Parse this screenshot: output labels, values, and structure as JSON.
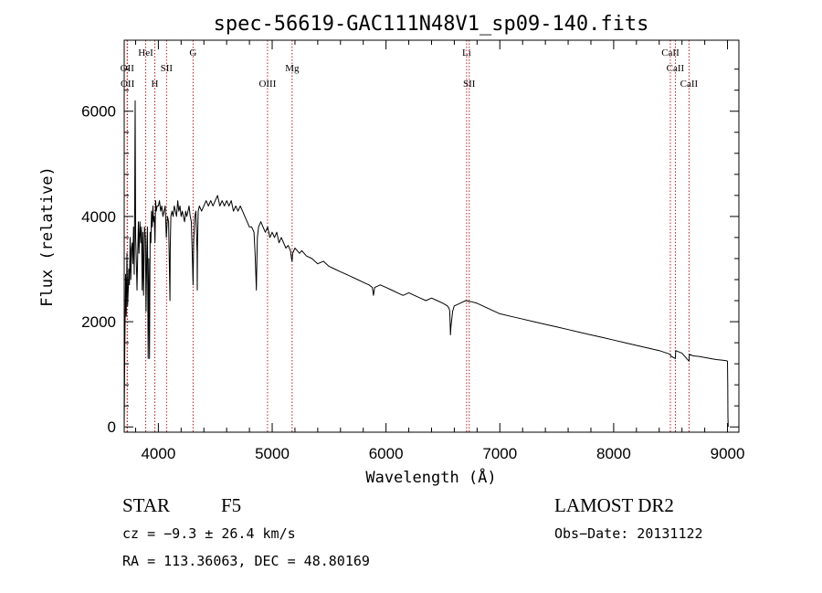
{
  "chart_data": {
    "type": "line",
    "title": "spec-56619-GAC111N48V1_sp09-140.fits",
    "xlabel": "Wavelength (Å)",
    "ylabel": "Flux (relative)",
    "xlim": [
      3700,
      9100
    ],
    "ylim": [
      -100,
      7350
    ],
    "x_ticks": [
      4000,
      5000,
      6000,
      7000,
      8000,
      9000
    ],
    "y_ticks": [
      0,
      2000,
      4000,
      6000
    ],
    "grid": false,
    "colors": {
      "spectrum": "#000000",
      "lines": "#b22222"
    },
    "series": [
      {
        "x": [
          3700,
          3705,
          3712,
          3718,
          3724,
          3730,
          3735,
          3740,
          3746,
          3752,
          3758,
          3764,
          3770,
          3776,
          3782,
          3788,
          3792,
          3796,
          3800,
          3806,
          3812,
          3818,
          3824,
          3830,
          3838,
          3846,
          3852,
          3858,
          3864,
          3870,
          3878,
          3886,
          3892,
          3898,
          3904,
          3910,
          3916,
          3922,
          3928,
          3934,
          3940,
          3946,
          3952,
          3958,
          3964,
          3970,
          3976,
          3982,
          3990,
          4000,
          4010,
          4020,
          4030,
          4040,
          4050,
          4060,
          4070,
          4080,
          4090,
          4100,
          4102,
          4104,
          4110,
          4120,
          4130,
          4140,
          4150,
          4160,
          4170,
          4180,
          4190,
          4200,
          4210,
          4220,
          4230,
          4240,
          4250,
          4260,
          4270,
          4280,
          4290,
          4300,
          4305,
          4310,
          4320,
          4330,
          4340,
          4342,
          4344,
          4350,
          4360,
          4380,
          4400,
          4420,
          4440,
          4460,
          4480,
          4500,
          4520,
          4540,
          4560,
          4580,
          4600,
          4620,
          4640,
          4660,
          4680,
          4700,
          4720,
          4740,
          4760,
          4780,
          4800,
          4820,
          4840,
          4850,
          4855,
          4861,
          4865,
          4870,
          4880,
          4900,
          4920,
          4940,
          4960,
          4980,
          5000,
          5020,
          5040,
          5060,
          5080,
          5100,
          5120,
          5140,
          5160,
          5170,
          5175,
          5180,
          5200,
          5220,
          5240,
          5260,
          5280,
          5300,
          5350,
          5400,
          5450,
          5500,
          5550,
          5600,
          5650,
          5700,
          5750,
          5800,
          5850,
          5880,
          5890,
          5900,
          5950,
          6000,
          6050,
          6100,
          6150,
          6200,
          6250,
          6300,
          6350,
          6400,
          6450,
          6500,
          6540,
          6555,
          6560,
          6563,
          6566,
          6570,
          6585,
          6600,
          6650,
          6700,
          6750,
          6800,
          6850,
          6900,
          6950,
          7000,
          7100,
          7200,
          7300,
          7400,
          7500,
          7600,
          7700,
          7800,
          7900,
          8000,
          8100,
          8200,
          8300,
          8400,
          8498,
          8500,
          8542,
          8545,
          8600,
          8662,
          8665,
          8700,
          8750,
          8800,
          8850,
          8900,
          8950,
          8990,
          9000,
          9002,
          9004,
          9006
        ],
        "y": [
          0,
          1400,
          2900,
          2100,
          3300,
          2300,
          2600,
          3000,
          2700,
          3600,
          2800,
          3400,
          3500,
          3100,
          3800,
          2900,
          4400,
          6200,
          3600,
          3200,
          2600,
          3200,
          3900,
          3300,
          3900,
          3500,
          3800,
          2600,
          3700,
          2500,
          3800,
          3600,
          2200,
          3300,
          3800,
          1300,
          3200,
          1300,
          3700,
          3500,
          4100,
          3800,
          4200,
          3900,
          4000,
          3500,
          4300,
          4100,
          4200,
          4200,
          4300,
          4100,
          4200,
          4000,
          4100,
          4200,
          3600,
          4000,
          3900,
          2600,
          2400,
          3400,
          4000,
          4100,
          4000,
          4200,
          4100,
          4000,
          4300,
          4100,
          4200,
          4000,
          4100,
          4000,
          3900,
          4100,
          4000,
          4100,
          4200,
          4000,
          3900,
          3100,
          2700,
          3500,
          4000,
          4100,
          3300,
          2600,
          3500,
          4100,
          4200,
          4100,
          4200,
          4300,
          4200,
          4300,
          4200,
          4300,
          4400,
          4200,
          4300,
          4200,
          4300,
          4200,
          4300,
          4100,
          4200,
          4100,
          4200,
          4100,
          4000,
          3900,
          3800,
          3800,
          3700,
          3300,
          3000,
          2600,
          3100,
          3600,
          3800,
          3900,
          3800,
          3700,
          3800,
          3600,
          3700,
          3600,
          3700,
          3500,
          3600,
          3500,
          3400,
          3450,
          3350,
          3200,
          3150,
          3300,
          3400,
          3350,
          3300,
          3350,
          3300,
          3250,
          3200,
          3100,
          3150,
          3050,
          3000,
          2950,
          2900,
          2850,
          2800,
          2750,
          2700,
          2650,
          2500,
          2650,
          2700,
          2650,
          2600,
          2550,
          2500,
          2550,
          2500,
          2450,
          2400,
          2450,
          2400,
          2350,
          2300,
          2250,
          2200,
          2000,
          1750,
          1900,
          2200,
          2300,
          2350,
          2400,
          2380,
          2350,
          2300,
          2250,
          2200,
          2150,
          2100,
          2050,
          2000,
          1950,
          1900,
          1850,
          1800,
          1750,
          1700,
          1650,
          1600,
          1550,
          1500,
          1450,
          1380,
          1350,
          1300,
          1450,
          1400,
          1250,
          1380,
          1350,
          1340,
          1320,
          1300,
          1280,
          1270,
          1260,
          1250,
          800,
          200,
          0
        ]
      }
    ],
    "lines": [
      {
        "label": "OII",
        "wavelength": 3726,
        "level": 2
      },
      {
        "label": "OII",
        "wavelength": 3729,
        "level": 3
      },
      {
        "label": "HeI",
        "wavelength": 3889,
        "level": 1
      },
      {
        "label": "H",
        "wavelength": 3969,
        "level": 3
      },
      {
        "label": "SII",
        "wavelength": 4072,
        "level": 2
      },
      {
        "label": "G",
        "wavelength": 4305,
        "level": 1
      },
      {
        "label": "OIII",
        "wavelength": 4959,
        "level": 3
      },
      {
        "label": "Mg",
        "wavelength": 5175,
        "level": 2
      },
      {
        "label": "Li",
        "wavelength": 6708,
        "level": 1
      },
      {
        "label": "SII",
        "wavelength": 6731,
        "level": 3
      },
      {
        "label": "CaII",
        "wavelength": 8498,
        "level": 1
      },
      {
        "label": "CaII",
        "wavelength": 8542,
        "level": 2
      },
      {
        "label": "CaII",
        "wavelength": 8662,
        "level": 3
      }
    ]
  },
  "info": {
    "object_class": "STAR",
    "subclass": "F5",
    "survey": "LAMOST DR2",
    "cz": "cz = −9.3 ± 26.4 km/s",
    "obs_date": "Obs−Date: 20131122",
    "coords": "RA = 113.36063, DEC =  48.80169"
  }
}
